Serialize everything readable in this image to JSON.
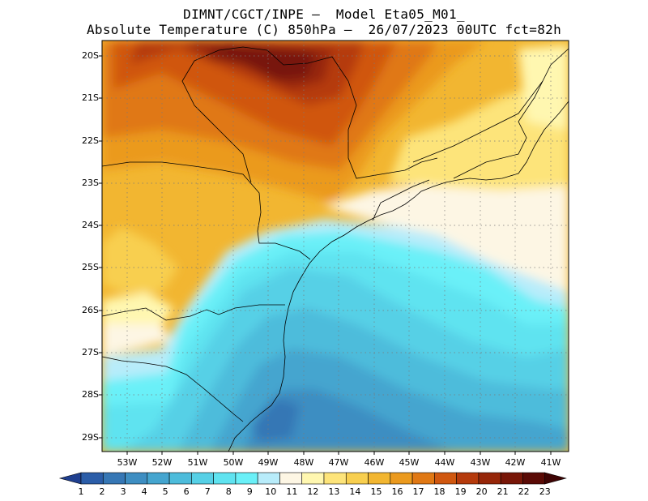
{
  "header": {
    "line1": "DIMNT/CGCT/INPE –  Model Eta05_M01_",
    "line2": "Absolute Temperature (C) 850hPa –  26/07/2023 00UTC fct=82h"
  },
  "axes": {
    "lat_labels": [
      "20S",
      "21S",
      "22S",
      "23S",
      "24S",
      "25S",
      "26S",
      "27S",
      "28S",
      "29S"
    ],
    "lon_labels": [
      "53W",
      "52W",
      "51W",
      "50W",
      "49W",
      "48W",
      "47W",
      "46W",
      "45W",
      "44W",
      "43W",
      "42W",
      "41W"
    ]
  },
  "colorbar": {
    "labels": [
      "1",
      "2",
      "3",
      "4",
      "5",
      "6",
      "7",
      "8",
      "9",
      "10",
      "11",
      "12",
      "13",
      "14",
      "15",
      "16",
      "17",
      "18",
      "19",
      "20",
      "21",
      "22",
      "23"
    ],
    "colors": [
      "#1f3f8f",
      "#2b5da8",
      "#3677b5",
      "#3e8ec2",
      "#45a5cf",
      "#4dbcdb",
      "#56d0e6",
      "#5fe3f0",
      "#6af0f8",
      "#b8ecfa",
      "#fdf6e4",
      "#fff7b0",
      "#fde47a",
      "#f8cf4f",
      "#f2b631",
      "#eb9a1e",
      "#e07814",
      "#d0570f",
      "#b53a0c",
      "#962609",
      "#781607",
      "#5a0a05",
      "#3e0404"
    ]
  },
  "map": {
    "legend_units": "C"
  }
}
